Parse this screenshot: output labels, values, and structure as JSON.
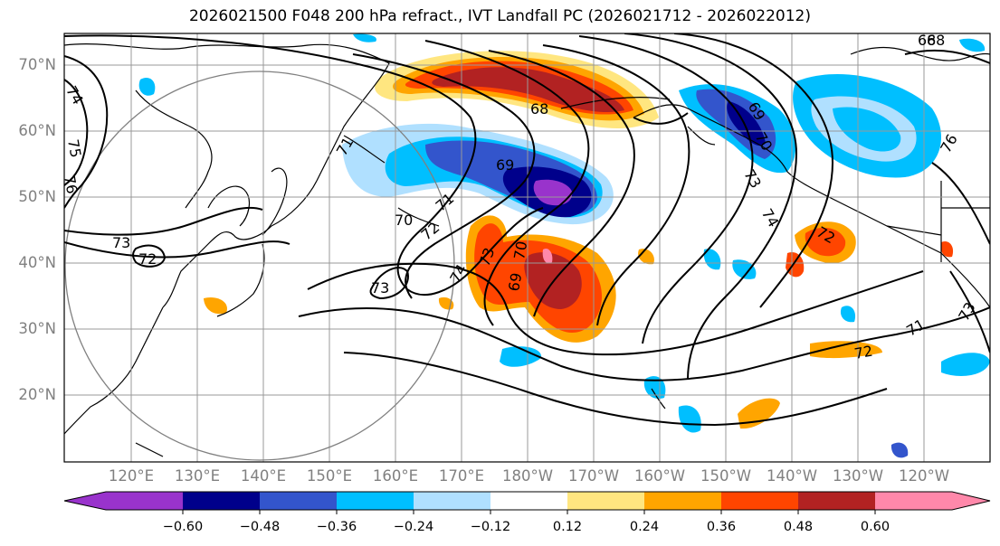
{
  "title": "2026021500 F048 200 hPa refract., IVT Landfall PC (2026021712 - 2026022012)",
  "map": {
    "lat_ticks": [
      "70°N",
      "60°N",
      "50°N",
      "40°N",
      "30°N",
      "20°N"
    ],
    "lon_ticks": [
      "120°E",
      "130°E",
      "140°E",
      "150°E",
      "160°E",
      "170°E",
      "180°W",
      "170°W",
      "160°W",
      "150°W",
      "140°W",
      "130°W",
      "120°W"
    ],
    "contour_labels": [
      "74",
      "75",
      "76",
      "73",
      "72",
      "71",
      "70",
      "69",
      "68",
      "68",
      "69",
      "70",
      "71",
      "72",
      "73",
      "74",
      "69",
      "70",
      "73",
      "74",
      "73",
      "72",
      "71",
      "72",
      "73",
      "76",
      "68"
    ],
    "colors": {
      "neg_extreme": "#9933cc",
      "neg_060": "#00008b",
      "neg_048": "#3355cc",
      "neg_036": "#00bfff",
      "neg_024": "#b0e0ff",
      "neutral": "#ffffff",
      "pos_012": "#ffe680",
      "pos_024": "#ffa500",
      "pos_036": "#ff4500",
      "pos_048": "#b22222",
      "pos_060": "#ff88aa"
    }
  },
  "colorbar": {
    "ticks": [
      "−0.60",
      "−0.48",
      "−0.36",
      "−0.24",
      "−0.12",
      "0.12",
      "0.24",
      "0.36",
      "0.48",
      "0.60"
    ],
    "colors": [
      "#9933cc",
      "#00008b",
      "#3355cc",
      "#00bfff",
      "#b0e0ff",
      "#ffffff",
      "#ffe680",
      "#ffa500",
      "#ff4500",
      "#b22222",
      "#ff88aa"
    ]
  }
}
